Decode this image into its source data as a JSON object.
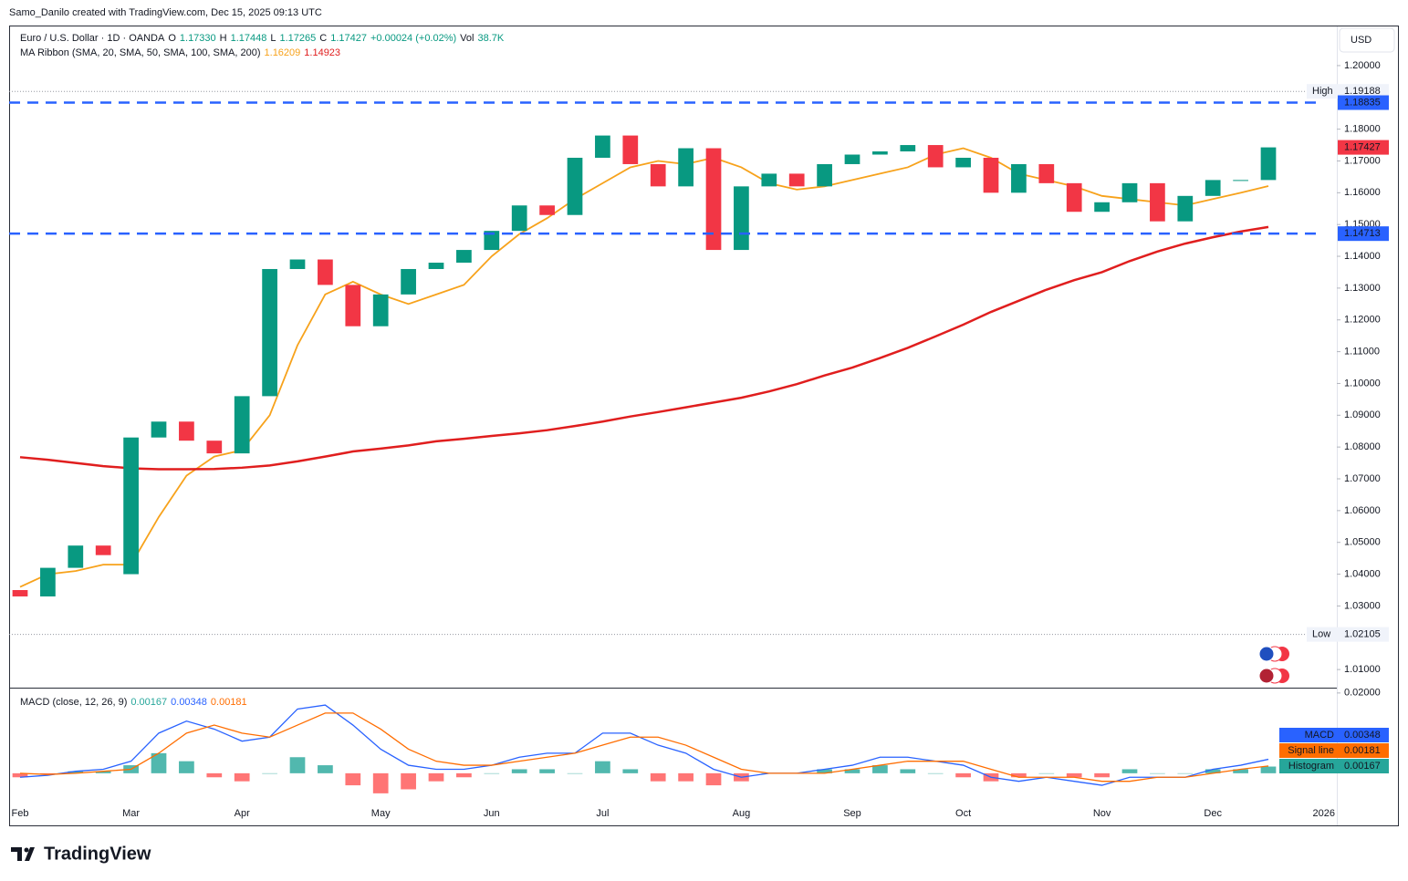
{
  "header": {
    "credit": "Samo_Danilo created with TradingView.com, Dec 15, 2025 09:13 UTC",
    "symbol": "Euro / U.S. Dollar · 1D · OANDA",
    "ohlc": [
      {
        "key": "O",
        "value": {
          "value": 1.1733,
          "label": "1.17330"
        }
      },
      {
        "key": "H",
        "value": 1.17448
      },
      {
        "key": "L",
        "value": 1.17265
      },
      {
        "key": "C",
        "value": 1.17427
      }
    ],
    "change": "+0.00024 (+0.02%)",
    "volume_key": "Vol",
    "volume": {
      "value": 38700,
      "label": "38.7K"
    },
    "currency": "USD"
  },
  "footer": {
    "brand": "TradingView"
  },
  "chart_data": [
    {
      "type": "candlestick",
      "title": "MA Ribbon (SMA, 20, SMA, 50, SMA, 100, SMA, 200)",
      "categories": [
        "Feb",
        null,
        null,
        null,
        "Mar",
        null,
        null,
        null,
        "Apr",
        null,
        null,
        null,
        null,
        "May",
        null,
        null,
        null,
        "Jun",
        null,
        null,
        null,
        "Jul",
        null,
        null,
        null,
        null,
        "Aug",
        null,
        null,
        null,
        "Sep",
        null,
        null,
        null,
        "Oct",
        null,
        null,
        null,
        null,
        "Nov",
        null,
        null,
        null,
        "Dec",
        null,
        null,
        null,
        "2026"
      ],
      "open": [
        1.035,
        1.033,
        1.042,
        1.049,
        1.04,
        1.083,
        1.088,
        1.082,
        1.078,
        1.096,
        1.136,
        1.139,
        1.131,
        1.118,
        1.128,
        1.136,
        1.138,
        1.142,
        1.148,
        1.156,
        1.153,
        1.171,
        1.178,
        1.169,
        1.162,
        1.174,
        1.142,
        1.162,
        1.166,
        1.162,
        1.169,
        1.172,
        1.173,
        1.175,
        1.168,
        1.171,
        1.16,
        1.169,
        1.163,
        1.154,
        1.157,
        1.163,
        1.151,
        1.159,
        1.164,
        1.164,
        null,
        null
      ],
      "high": {
        "label": "High",
        "value": 1.19188
      },
      "low": {
        "label": "Low",
        "value": 1.02105
      },
      "close": [
        1.033,
        1.042,
        1.049,
        1.046,
        1.083,
        1.088,
        1.082,
        1.078,
        1.096,
        1.136,
        1.139,
        1.131,
        1.118,
        1.128,
        1.136,
        1.138,
        1.142,
        1.148,
        1.156,
        1.153,
        1.171,
        1.178,
        1.169,
        1.162,
        1.174,
        1.142,
        1.162,
        1.166,
        1.162,
        1.169,
        1.172,
        1.173,
        1.175,
        1.168,
        1.171,
        1.16,
        1.169,
        1.163,
        1.154,
        1.157,
        1.163,
        1.151,
        1.159,
        1.164,
        1.164,
        1.17427,
        null,
        null
      ],
      "up_color": "#089981",
      "down_color": "#f23645",
      "lines": [
        {
          "color": "#f7a21b",
          "values": [
            1.036,
            1.04,
            1.041,
            1.043,
            1.043,
            1.058,
            1.071,
            1.077,
            1.079,
            1.09,
            1.112,
            1.128,
            1.132,
            1.128,
            1.125,
            1.128,
            1.131,
            1.14,
            1.147,
            1.152,
            1.158,
            1.163,
            1.168,
            1.17,
            1.169,
            1.171,
            1.168,
            1.163,
            1.161,
            1.162,
            1.164,
            1.166,
            1.168,
            1.172,
            1.174,
            1.171,
            1.166,
            1.164,
            1.162,
            1.159,
            1.158,
            1.157,
            1.156,
            1.158,
            1.16,
            1.16209,
            null,
            null
          ]
        },
        {
          "color": "#e01e1e",
          "values": [
            1.0768,
            1.076,
            1.075,
            1.074,
            1.0733,
            1.073,
            1.073,
            1.0731,
            1.0735,
            1.0742,
            1.0755,
            1.077,
            1.0786,
            1.0795,
            1.0805,
            1.0818,
            1.0826,
            1.0835,
            1.0843,
            1.0853,
            1.0866,
            1.088,
            1.0896,
            1.091,
            1.0925,
            1.094,
            1.0955,
            1.0975,
            1.0998,
            1.1025,
            1.105,
            1.108,
            1.1112,
            1.1148,
            1.1185,
            1.1225,
            1.126,
            1.1295,
            1.1325,
            1.135,
            1.1385,
            1.1415,
            1.144,
            1.146,
            1.1478,
            1.14923,
            null,
            null
          ]
        }
      ],
      "levels": [
        {
          "value": 1.18835,
          "color": "#2962ff"
        },
        {
          "value": 1.14713,
          "color": "#2962ff"
        }
      ],
      "ylim": [
        1.0043,
        1.2126
      ],
      "yticks": [
        {
          "value": 1.2,
          "label": "1.20000"
        },
        {
          "value": 1.18,
          "label": "1.18000"
        },
        {
          "value": 1.17,
          "label": "1.17000"
        },
        {
          "value": 1.16,
          "label": "1.16000"
        },
        {
          "value": 1.15,
          "label": "1.15000"
        },
        {
          "value": 1.14,
          "label": "1.14000"
        },
        {
          "value": 1.13,
          "label": "1.13000"
        },
        {
          "value": 1.12,
          "label": "1.12000"
        },
        {
          "value": 1.11,
          "label": "1.11000"
        },
        {
          "value": 1.1,
          "label": "1.10000"
        },
        {
          "value": 1.09,
          "label": "1.09000"
        },
        {
          "value": 1.08,
          "label": "1.08000"
        },
        {
          "value": 1.07,
          "label": "1.07000"
        },
        {
          "value": 1.06,
          "label": "1.06000"
        },
        {
          "value": 1.05,
          "label": "1.05000"
        },
        {
          "value": 1.04,
          "label": "1.04000"
        },
        {
          "value": 1.03,
          "label": "1.03000"
        },
        {
          "value": 1.01,
          "label": "1.01000"
        }
      ]
    },
    {
      "type": "macd",
      "title": "MACD (close, 12, 26, 9)",
      "series": [
        {
          "name": "Histogram",
          "color": "#26a69a",
          "down_color": "#ff5252",
          "values": [
            -0.001,
            -0.0002,
            0.0005,
            0.0005,
            0.002,
            0.005,
            0.003,
            -0.001,
            -0.002,
            0,
            0.004,
            0.002,
            -0.003,
            -0.005,
            -0.004,
            -0.002,
            -0.001,
            0,
            0.001,
            0.001,
            0,
            0.003,
            0.001,
            -0.002,
            -0.002,
            -0.003,
            -0.002,
            0,
            0,
            0.001,
            0.001,
            0.002,
            0.001,
            0,
            -0.001,
            -0.002,
            -0.001,
            0,
            -0.001,
            -0.001,
            0.001,
            0,
            0,
            0.001,
            0.001,
            0.00167,
            null,
            null
          ]
        },
        {
          "name": "MACD",
          "color": "#2962ff",
          "values": [
            -0.001,
            -0.0005,
            0.0005,
            0.001,
            0.003,
            0.01,
            0.013,
            0.011,
            0.008,
            0.009,
            0.016,
            0.017,
            0.012,
            0.006,
            0.002,
            0.001,
            0.001,
            0.002,
            0.004,
            0.005,
            0.005,
            0.01,
            0.01,
            0.007,
            0.005,
            0.001,
            -0.001,
            0,
            0,
            0.001,
            0.002,
            0.004,
            0.004,
            0.003,
            0.002,
            -0.001,
            -0.002,
            -0.001,
            -0.002,
            -0.003,
            -0.001,
            -0.001,
            -0.001,
            0.001,
            0.002,
            0.00348,
            null,
            null
          ]
        },
        {
          "name": "Signal line",
          "color": "#ff6d00",
          "values": [
            0,
            -0.0003,
            0,
            0.0005,
            0.001,
            0.005,
            0.01,
            0.012,
            0.01,
            0.009,
            0.012,
            0.015,
            0.015,
            0.011,
            0.006,
            0.003,
            0.002,
            0.002,
            0.003,
            0.004,
            0.005,
            0.007,
            0.009,
            0.009,
            0.007,
            0.004,
            0.001,
            0,
            0,
            0,
            0.001,
            0.002,
            0.003,
            0.003,
            0.003,
            0.001,
            -0.001,
            -0.001,
            -0.001,
            -0.002,
            -0.002,
            -0.001,
            -0.001,
            0,
            0.001,
            0.00181,
            null,
            null
          ]
        }
      ],
      "ylim": [
        -0.0073,
        0.0211
      ],
      "yticks": [
        {
          "value": 0.02,
          "label": "0.02000"
        }
      ]
    }
  ]
}
